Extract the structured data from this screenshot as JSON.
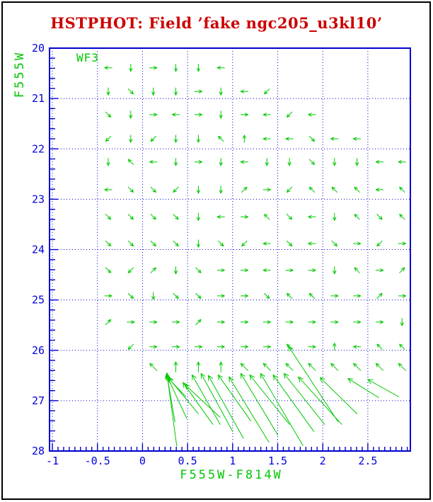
{
  "title": {
    "text": "HSTPHOT: Field ’fake ngc205_u3kl10’"
  },
  "colors": {
    "title": "#cc0000",
    "axis": "#0000cc",
    "tick_label": "#0000dd",
    "data": "#00c800",
    "frame_border": "#000000",
    "background": "#ffffff"
  },
  "plot": {
    "detector_label": "WF3",
    "xlabel": "F555W-F814W",
    "ylabel": "F555W",
    "x_tick_labels": [
      "-1",
      "-0.5",
      "0",
      "0.5",
      "1",
      "1.5",
      "2",
      "2.5"
    ],
    "y_tick_labels": [
      "20",
      "21",
      "22",
      "23",
      "24",
      "25",
      "26",
      "27",
      "28"
    ]
  },
  "chart_data": {
    "type": "vector_field",
    "title": "HSTPHOT: Field ’fake ngc205_u3kl10’",
    "xlabel": "F555W-F814W",
    "ylabel": "F555W",
    "xlim": [
      -1.03,
      2.97
    ],
    "ylim": [
      28,
      20
    ],
    "x_major_ticks": [
      -1,
      -0.5,
      0,
      0.5,
      1,
      1.5,
      2,
      2.5
    ],
    "y_major_ticks": [
      20,
      21,
      22,
      23,
      24,
      25,
      26,
      27,
      28
    ],
    "grid_style": "dotted",
    "annotation": "WF3",
    "vector_grid": {
      "columns_color": [
        -0.38,
        -0.13,
        0.12,
        0.37,
        0.62,
        0.87,
        1.13,
        1.38,
        1.63,
        1.88,
        2.13,
        2.38,
        2.63,
        2.88
      ],
      "rows_mag": [
        20.39,
        20.86,
        21.32,
        21.8,
        22.26,
        22.81,
        23.35,
        23.88,
        24.41,
        24.92,
        25.44,
        25.93,
        26.33
      ],
      "directions": [
        "W S E S S W . . . . . . . .",
        "S SE S S E S W SW . . . . . .",
        "SE S E W E S E W SW W . . . .",
        "SW S SW S S NW N W W SE W W . .",
        "S NW W S E S W S S SE S S W W",
        "W SE SE SW S S NE E SW NW NW NW W NW",
        "SE SE SE SE S W E NW SE W S NW SE NW",
        "SE SE SE SE S SE SW W SE W SE E SW E",
        "SE SW NE S SE E E W E E S NW E NE",
        "E SE S SE SE E E SE NW NW E E NE E",
        "NE E E E NE E E E E E E E E S",
        ". SW E E E E E E NW E N W NW NW",
        ". . NW N N N NW NW NW NW NW NW NW NW"
      ]
    },
    "long_arrows_head_tail_color_mag": [
      [
        0.27,
        26.45,
        0.38,
        27.9
      ],
      [
        0.27,
        26.48,
        0.36,
        27.42
      ],
      [
        0.27,
        26.5,
        0.49,
        27.35
      ],
      [
        0.28,
        26.53,
        0.62,
        27.26
      ],
      [
        0.29,
        26.56,
        0.48,
        26.92
      ],
      [
        0.45,
        26.64,
        0.78,
        27.47
      ],
      [
        0.47,
        26.68,
        0.86,
        27.33
      ],
      [
        0.55,
        26.49,
        0.86,
        27.47
      ],
      [
        0.65,
        26.46,
        1.0,
        27.61
      ],
      [
        0.73,
        26.5,
        1.12,
        27.75
      ],
      [
        0.84,
        26.49,
        1.2,
        27.4
      ],
      [
        0.96,
        26.53,
        1.4,
        27.82
      ],
      [
        1.09,
        26.46,
        1.5,
        27.68
      ],
      [
        1.19,
        26.49,
        1.63,
        27.47
      ],
      [
        1.31,
        26.46,
        1.78,
        27.89
      ],
      [
        1.45,
        26.49,
        1.9,
        27.61
      ],
      [
        1.57,
        26.46,
        2.02,
        27.47
      ],
      [
        1.62,
        25.92,
        2.17,
        27.42
      ],
      [
        1.73,
        26.53,
        2.21,
        27.47
      ],
      [
        1.97,
        26.54,
        2.38,
        27.26
      ],
      [
        2.28,
        26.56,
        2.62,
        26.94
      ],
      [
        2.5,
        26.58,
        2.84,
        26.92
      ]
    ]
  }
}
